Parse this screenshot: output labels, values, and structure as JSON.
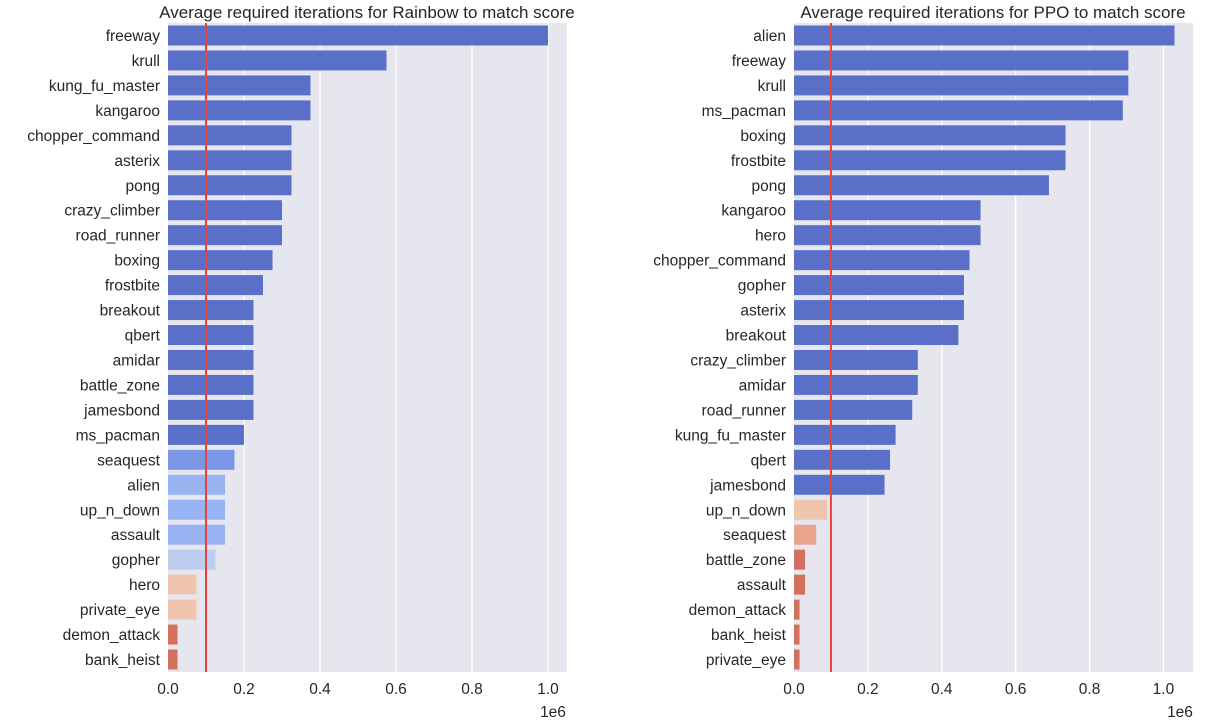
{
  "chart_data": [
    {
      "type": "bar",
      "orientation": "horizontal",
      "title": "Average required iterations for Rainbow to match score",
      "categories": [
        "freeway",
        "krull",
        "kung_fu_master",
        "kangaroo",
        "chopper_command",
        "asterix",
        "pong",
        "crazy_climber",
        "road_runner",
        "boxing",
        "frostbite",
        "breakout",
        "qbert",
        "amidar",
        "battle_zone",
        "jamesbond",
        "ms_pacman",
        "seaquest",
        "alien",
        "up_n_down",
        "assault",
        "gopher",
        "hero",
        "private_eye",
        "demon_attack",
        "bank_heist"
      ],
      "values": [
        1000000,
        575000,
        375000,
        375000,
        325000,
        325000,
        325000,
        300000,
        300000,
        275000,
        250000,
        225000,
        225000,
        225000,
        225000,
        225000,
        200000,
        175000,
        150000,
        150000,
        150000,
        125000,
        75000,
        75000,
        25000,
        25000
      ],
      "colors": [
        "#5a6fc8",
        "#5a6fc8",
        "#5a6fc8",
        "#5a6fc8",
        "#5a6fc8",
        "#5a6fc8",
        "#5a6fc8",
        "#5a6fc8",
        "#5a6fc8",
        "#5a6fc8",
        "#5a6fc8",
        "#5a6fc8",
        "#5a6fc8",
        "#5a6fc8",
        "#5a6fc8",
        "#5a6fc8",
        "#5a6fc8",
        "#7b96e4",
        "#98b3f2",
        "#98b3f2",
        "#98b3f2",
        "#bccdf0",
        "#f0c5b0",
        "#f0c5b0",
        "#d4705e",
        "#d4705e"
      ],
      "xlim": [
        0,
        1050000
      ],
      "xticks": [
        0,
        200000,
        400000,
        600000,
        800000,
        1000000
      ],
      "xtick_labels": [
        "0.0",
        "0.2",
        "0.4",
        "0.6",
        "0.8",
        "1.0"
      ],
      "x_scale_label": "1e6",
      "reference_line": {
        "x": 100000,
        "color": "#e8433b"
      },
      "grid": true
    },
    {
      "type": "bar",
      "orientation": "horizontal",
      "title": "Average required iterations for PPO to match score",
      "categories": [
        "alien",
        "freeway",
        "krull",
        "ms_pacman",
        "boxing",
        "frostbite",
        "pong",
        "kangaroo",
        "hero",
        "chopper_command",
        "gopher",
        "asterix",
        "breakout",
        "crazy_climber",
        "amidar",
        "road_runner",
        "kung_fu_master",
        "qbert",
        "jamesbond",
        "up_n_down",
        "seaquest",
        "battle_zone",
        "assault",
        "demon_attack",
        "bank_heist",
        "private_eye"
      ],
      "values": [
        1030000,
        905000,
        905000,
        890000,
        735000,
        735000,
        690000,
        505000,
        505000,
        475000,
        460000,
        460000,
        445000,
        335000,
        335000,
        320000,
        275000,
        260000,
        245000,
        90000,
        60000,
        30000,
        30000,
        15000,
        15000,
        15000
      ],
      "colors": [
        "#5a6fc8",
        "#5a6fc8",
        "#5a6fc8",
        "#5a6fc8",
        "#5a6fc8",
        "#5a6fc8",
        "#5a6fc8",
        "#5a6fc8",
        "#5a6fc8",
        "#5a6fc8",
        "#5a6fc8",
        "#5a6fc8",
        "#5a6fc8",
        "#5a6fc8",
        "#5a6fc8",
        "#5a6fc8",
        "#5a6fc8",
        "#5a6fc8",
        "#5a6fc8",
        "#f0c5b0",
        "#e8a48c",
        "#d4705e",
        "#d4705e",
        "#d4705e",
        "#d4705e",
        "#d4705e"
      ],
      "xlim": [
        0,
        1080000
      ],
      "xticks": [
        0,
        200000,
        400000,
        600000,
        800000,
        1000000
      ],
      "xtick_labels": [
        "0.0",
        "0.2",
        "0.4",
        "0.6",
        "0.8",
        "1.0"
      ],
      "x_scale_label": "1e6",
      "reference_line": {
        "x": 100000,
        "color": "#e8433b"
      },
      "grid": true
    }
  ]
}
